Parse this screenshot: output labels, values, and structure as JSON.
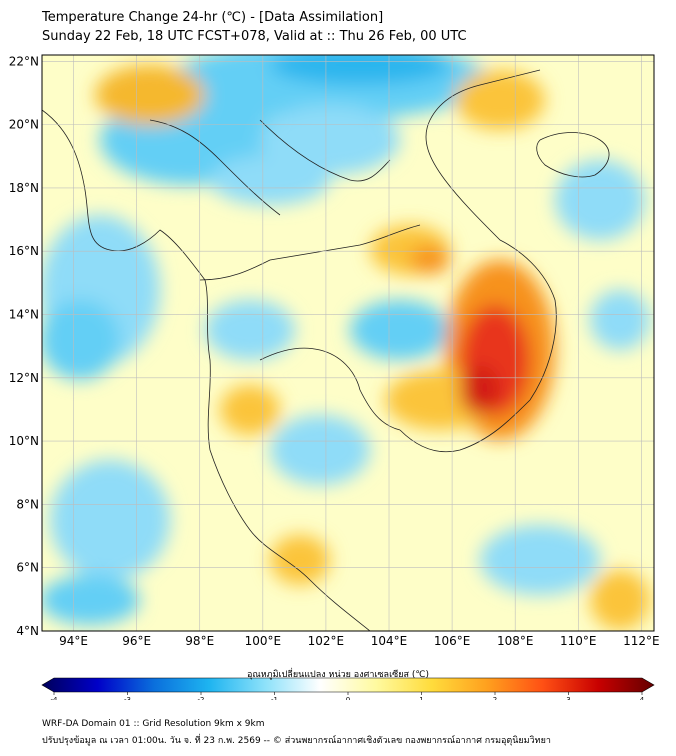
{
  "title": {
    "line1": "Temperature Change 24-hr (℃) - [Data Assimilation]",
    "line2": "Sunday 22 Feb, 18 UTC FCST+078, Valid at :: Thu 26 Feb, 00 UTC"
  },
  "map": {
    "lat_labels": [
      "22°N",
      "20°N",
      "18°N",
      "16°N",
      "14°N",
      "12°N",
      "10°N",
      "8°N",
      "6°N",
      "4°N"
    ],
    "lon_labels": [
      "94°E",
      "96°E",
      "98°E",
      "100°E",
      "102°E",
      "104°E",
      "106°E",
      "108°E",
      "110°E",
      "112°E"
    ],
    "lat_range": [
      4,
      22.2
    ],
    "lon_range": [
      93,
      112.4
    ],
    "background_color": "#fefec8",
    "anomaly_regions": [
      {
        "name": "warm-anomaly-cambodia-vietnam",
        "value": 3.2,
        "color": "#e8341c"
      },
      {
        "name": "warm-anomaly-south-vietnam",
        "value": 2.4,
        "color": "#f7921e"
      },
      {
        "name": "warm-anomaly-laos",
        "value": 1.8,
        "color": "#fbc43a"
      },
      {
        "name": "warm-anomaly-myanmar-north",
        "value": 1.6,
        "color": "#f5b82e"
      },
      {
        "name": "cool-anomaly-north",
        "value": -1.6,
        "color": "#2bb5ee"
      },
      {
        "name": "cool-anomaly-bay-of-bengal",
        "value": -1.2,
        "color": "#63cff5"
      },
      {
        "name": "cool-anomaly-gulf-thailand",
        "value": -1.0,
        "color": "#8fdcf8"
      }
    ]
  },
  "colorbar": {
    "label": "อุณหภูมิเปลี่ยนแปลง หน่วย องศาเซลเซียส (℃)",
    "ticks": [
      "-4",
      "-3",
      "-2",
      "-1",
      "0",
      "1",
      "2",
      "3",
      "4"
    ],
    "min": -4,
    "max": 4,
    "colors": [
      "#00005a",
      "#0000c8",
      "#0a6edc",
      "#1eb4f0",
      "#8ce1fa",
      "#ffffff",
      "#fffaa0",
      "#ffdc3c",
      "#ffa01e",
      "#ff5014",
      "#c80000",
      "#640000"
    ]
  },
  "footer": {
    "line1": "WRF-DA Domain 01 :: Grid Resolution 9km x 9km",
    "line2": "ปรับปรุงข้อมูล ณ เวลา 01:00น. วัน จ. ที่ 23 ก.พ. 2569 -- © ส่วนพยากรณ์อากาศเชิงตัวเลข กองพยากรณ์อากาศ กรมอุตุนิยมวิทยา"
  }
}
